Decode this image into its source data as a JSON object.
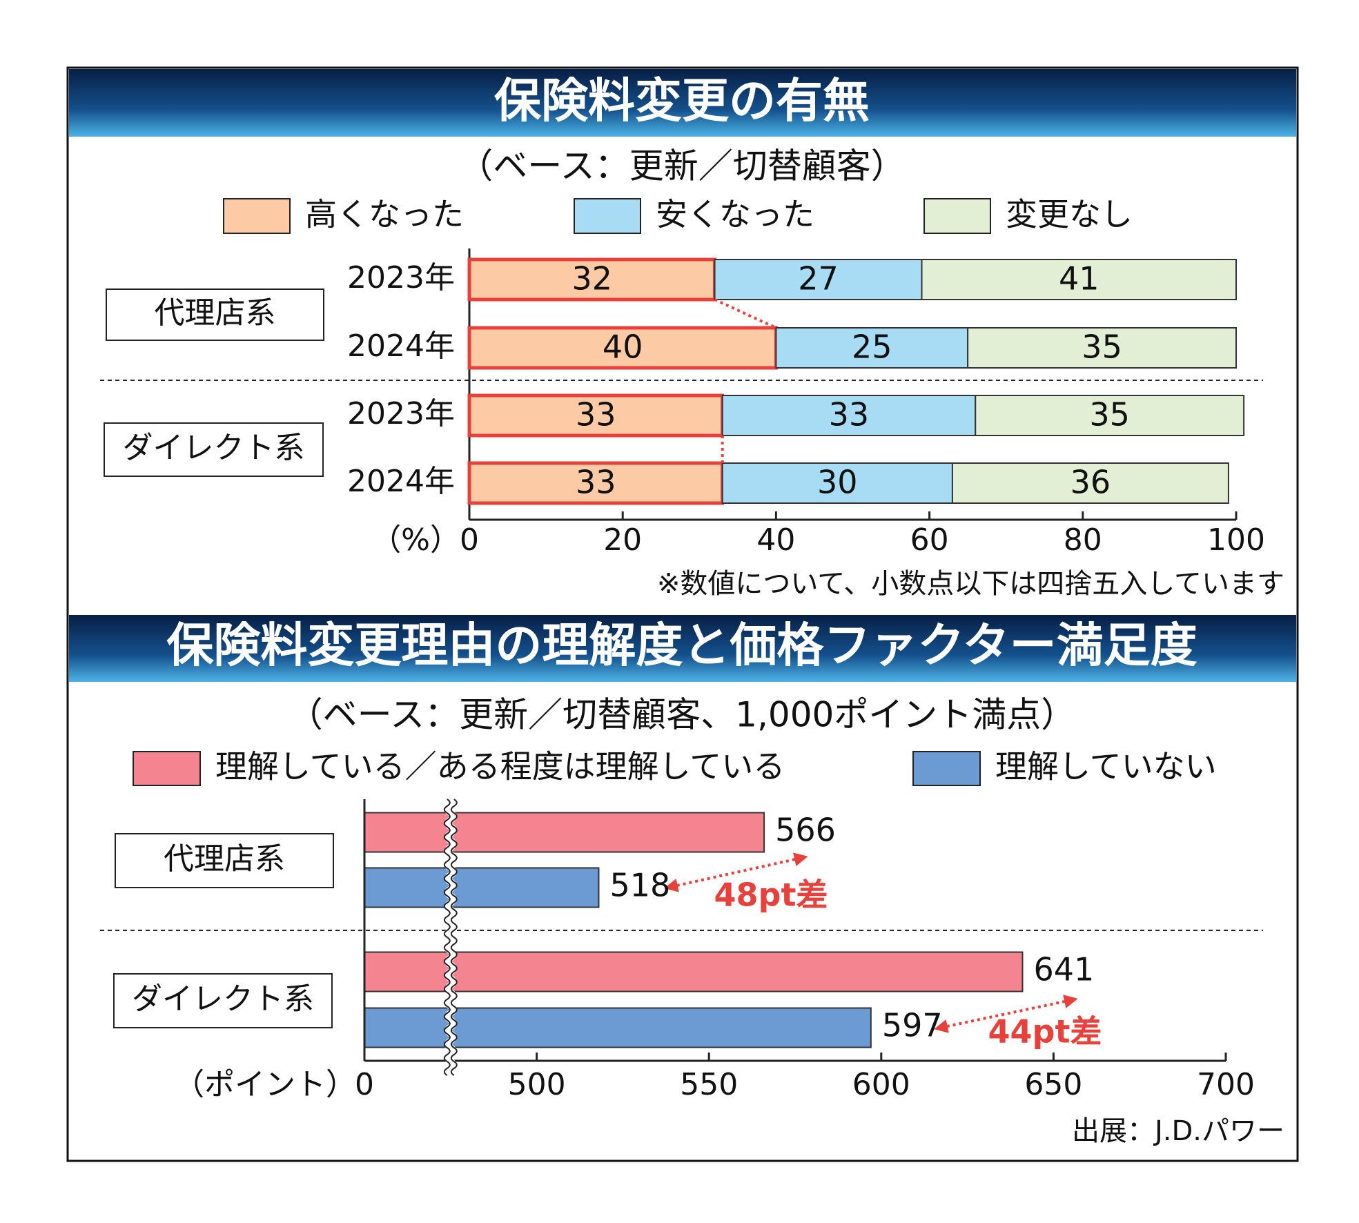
{
  "chart_data": [
    {
      "type": "stacked_bar",
      "title": "保険料変更の有無",
      "subtitle": "（ベース：更新／切替顧客）",
      "groups": [
        "代理店系",
        "ダイレクト系"
      ],
      "categories": [
        "2023年",
        "2024年",
        "2023年",
        "2024年"
      ],
      "series": [
        {
          "name": "高くなった",
          "color": "#fccaa5",
          "outline": "#e8413c",
          "values": [
            32,
            40,
            33,
            33
          ]
        },
        {
          "name": "安くなった",
          "color": "#a8dcf5",
          "values": [
            27,
            25,
            33,
            30
          ]
        },
        {
          "name": "変更なし",
          "color": "#e2efd4",
          "values": [
            41,
            35,
            35,
            36
          ]
        }
      ],
      "xlim": [
        0,
        100
      ],
      "xticks": [
        0,
        20,
        40,
        60,
        80,
        100
      ],
      "xlabel": "（%）",
      "note": "※数値について、小数点以下は四捨五入しています"
    },
    {
      "type": "bar",
      "title": "保険料変更理由の理解度と価格ファクター満足度",
      "subtitle": "（ベース：更新／切替顧客、1,000ポイント満点）",
      "categories": [
        "代理店系",
        "ダイレクト系"
      ],
      "series": [
        {
          "name": "理解している／ある程度は理解している",
          "color": "#f4848f",
          "values": [
            566,
            641
          ]
        },
        {
          "name": "理解していない",
          "color": "#6b9bd2",
          "values": [
            518,
            597
          ]
        }
      ],
      "xlim": [
        0,
        700
      ],
      "axis_break": [
        0,
        450
      ],
      "xticks": [
        0,
        500,
        550,
        600,
        650,
        700
      ],
      "xlabel": "（ポイント）",
      "annotations": [
        "48pt差",
        "44pt差"
      ],
      "source": "出展：J.D.パワー"
    }
  ]
}
